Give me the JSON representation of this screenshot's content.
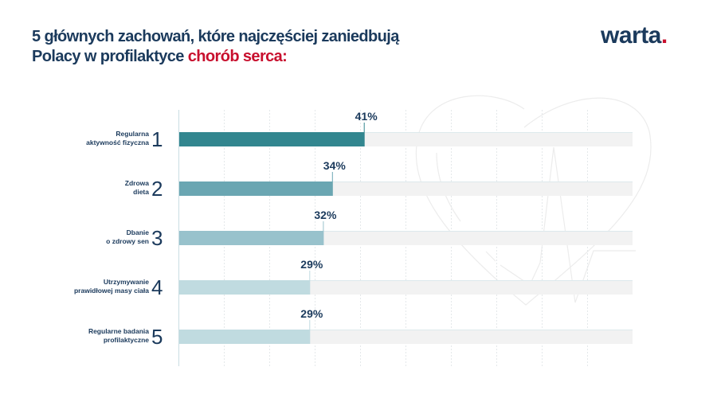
{
  "header": {
    "title_line1": "5 głównych zachowań, które najczęściej zaniedbują",
    "title_line2_prefix": "Polacy w profilaktyce ",
    "title_line2_highlight": "chorób serca:",
    "logo_text": "warta",
    "logo_dot": "."
  },
  "colors": {
    "navy": "#1b3a5c",
    "accent_red": "#c8102e",
    "track": "#f2f2f2"
  },
  "chart_data": {
    "type": "bar",
    "orientation": "horizontal",
    "xlim": [
      0,
      100
    ],
    "grid": true,
    "decoration": "heart-outline-with-heartbeat-icon",
    "categories": [
      {
        "rank": "1",
        "label": [
          "Regularna",
          "aktywność fizyczna"
        ],
        "value": 41,
        "value_label": "41%",
        "color": "#32868f"
      },
      {
        "rank": "2",
        "label": [
          "Zdrowa",
          "dieta"
        ],
        "value": 34,
        "value_label": "34%",
        "color": "#6aa6b2"
      },
      {
        "rank": "3",
        "label": [
          "Dbanie",
          "o zdrowy sen"
        ],
        "value": 32,
        "value_label": "32%",
        "color": "#98c2cc"
      },
      {
        "rank": "4",
        "label": [
          "Utrzymywanie",
          "prawidłowej masy ciała"
        ],
        "value": 29,
        "value_label": "29%",
        "color": "#c0dbe0"
      },
      {
        "rank": "5",
        "label": [
          "Regularne badania",
          "profilaktyczne"
        ],
        "value": 29,
        "value_label": "29%",
        "color": "#c0dbe0"
      }
    ]
  }
}
